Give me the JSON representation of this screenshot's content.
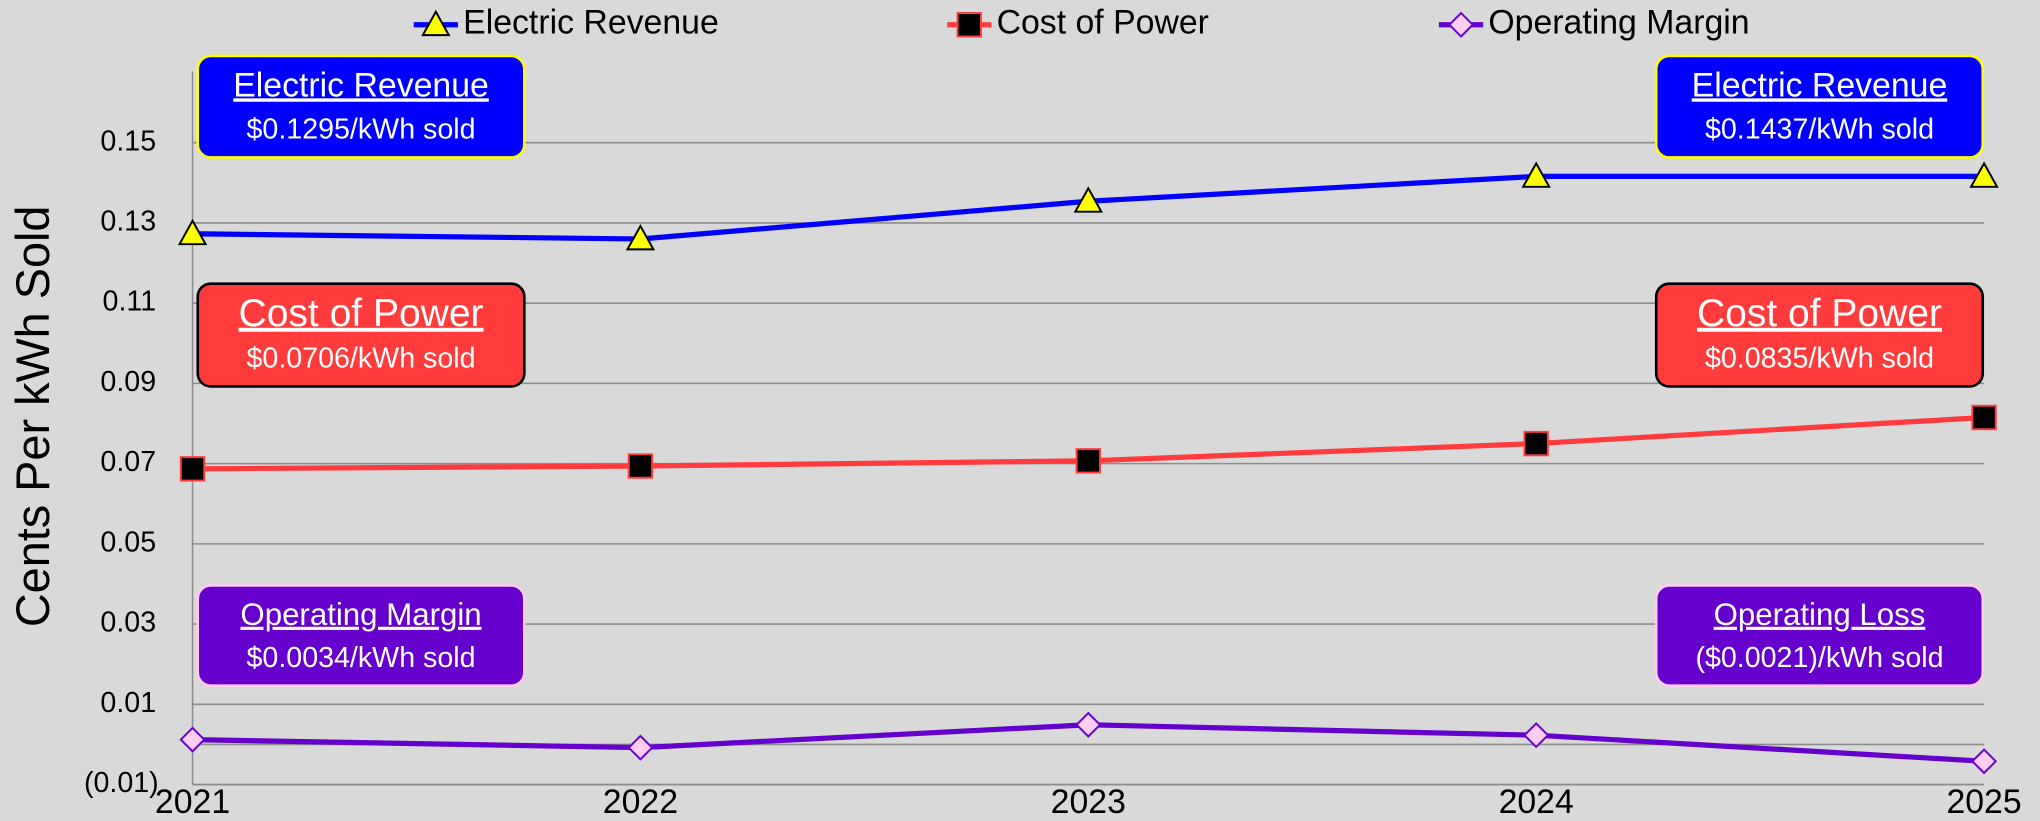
{
  "chart_data": {
    "type": "line",
    "y_label": "Cents Per kWh Sold",
    "categories": [
      "2021",
      "2022",
      "2023",
      "2024",
      "2025"
    ],
    "series": [
      {
        "name": "Electric Revenue",
        "color": "#0000ff",
        "marker": "triangle",
        "marker_color": "#ffff00",
        "values": [
          0.1273,
          0.126,
          0.1354,
          0.1416,
          0.1416
        ]
      },
      {
        "name": "Cost of Power",
        "color": "#ff3b3b",
        "marker": "square",
        "marker_color": "#000000",
        "values": [
          0.0687,
          0.0694,
          0.0707,
          0.075,
          0.0815
        ]
      },
      {
        "name": "Operating Margin",
        "color": "#6600cc",
        "marker": "diamond",
        "marker_color": "#ffccf2",
        "values": [
          0.0012,
          -0.0008,
          0.0049,
          0.0023,
          -0.0042
        ]
      }
    ],
    "ylim": [
      -0.01,
      0.17
    ],
    "yticks": [
      {
        "value": -0.01,
        "label": "(0.01)"
      },
      0.01,
      0.03,
      0.05,
      0.07,
      0.09,
      0.11,
      0.13,
      0.15
    ],
    "grid": true,
    "legend": "top",
    "annotations": [
      {
        "title": "Electric Revenue",
        "text": "$0.1295/kWh sold",
        "color": "#0000ff",
        "border": "#ffff00"
      },
      {
        "title": "Electric Revenue",
        "text": "$0.1437/kWh sold",
        "color": "#0000ff",
        "border": "#ffff00"
      },
      {
        "title": "Cost of Power",
        "text": "$0.0706/kWh sold",
        "color": "#ff3b3b",
        "border": "#000000"
      },
      {
        "title": "Cost of Power",
        "text": "$0.0835/kWh sold",
        "color": "#ff3b3b",
        "border": "#000000"
      },
      {
        "title": "Operating Margin",
        "text": "$0.0034/kWh sold",
        "color": "#6600cc",
        "border": "#ffccf2"
      },
      {
        "title": "Operating Loss",
        "text": "($0.0021)/kWh sold",
        "color": "#6600cc",
        "border": "#ffccf2"
      }
    ]
  }
}
